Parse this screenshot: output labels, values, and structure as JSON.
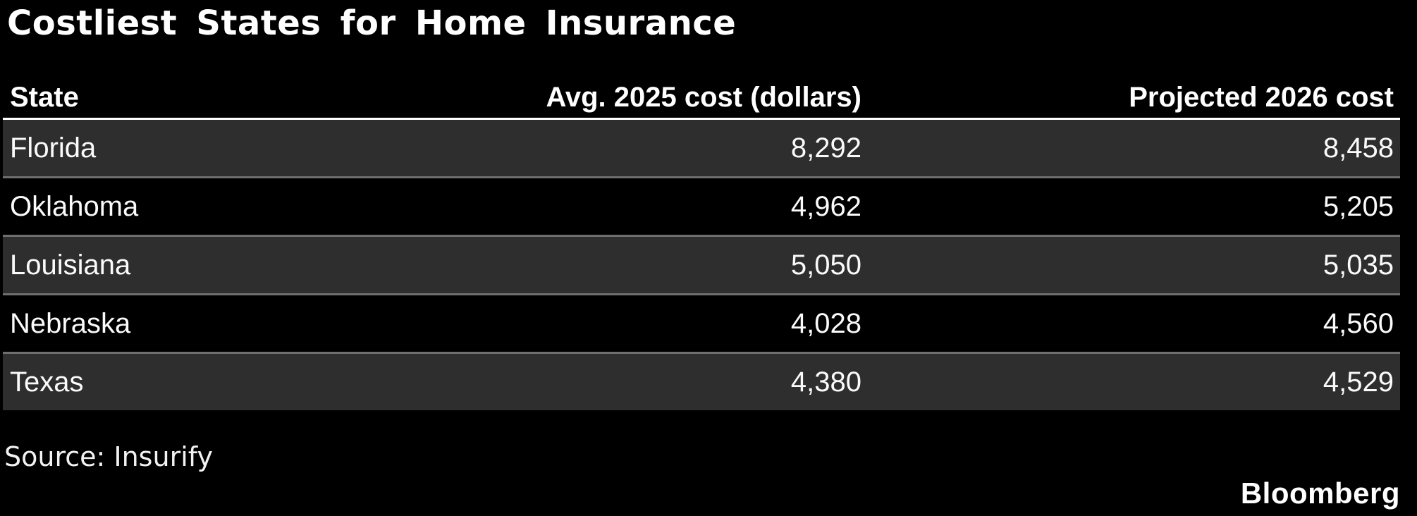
{
  "header": {
    "title": "Costliest States for Home Insurance"
  },
  "table": {
    "headers": {
      "state": "State",
      "avg_2025": "Avg. 2025 cost (dollars)",
      "proj_2026": "Projected 2026 cost"
    },
    "rows": [
      {
        "state": "Florida",
        "avg_2025": "8,292",
        "proj_2026": "8,458"
      },
      {
        "state": "Oklahoma",
        "avg_2025": "4,962",
        "proj_2026": "5,205"
      },
      {
        "state": "Louisiana",
        "avg_2025": "5,050",
        "proj_2026": "5,035"
      },
      {
        "state": "Nebraska",
        "avg_2025": "4,028",
        "proj_2026": "4,560"
      },
      {
        "state": "Texas",
        "avg_2025": "4,380",
        "proj_2026": "4,529"
      }
    ]
  },
  "footer": {
    "source": "Source: Insurify",
    "brand": "Bloomberg"
  },
  "colors": {
    "background": "#000000",
    "row_shade": "#2e2e2e",
    "row_black": "#000000",
    "separator": "#6f6f6f",
    "header_rule": "#ffffff",
    "text": "#ffffff"
  },
  "chart_data": {
    "type": "table",
    "title": "Costliest States for Home Insurance",
    "columns": [
      "State",
      "Avg. 2025 cost (dollars)",
      "Projected 2026 cost"
    ],
    "rows": [
      [
        "Florida",
        8292,
        8458
      ],
      [
        "Oklahoma",
        4962,
        5205
      ],
      [
        "Louisiana",
        5050,
        5035
      ],
      [
        "Nebraska",
        4028,
        4560
      ],
      [
        "Texas",
        4380,
        4529
      ]
    ],
    "source": "Insurify",
    "brand": "Bloomberg",
    "layout_hints": {
      "zebra_striping": true,
      "numeric_columns_right_aligned": true,
      "dark_theme": true
    }
  }
}
